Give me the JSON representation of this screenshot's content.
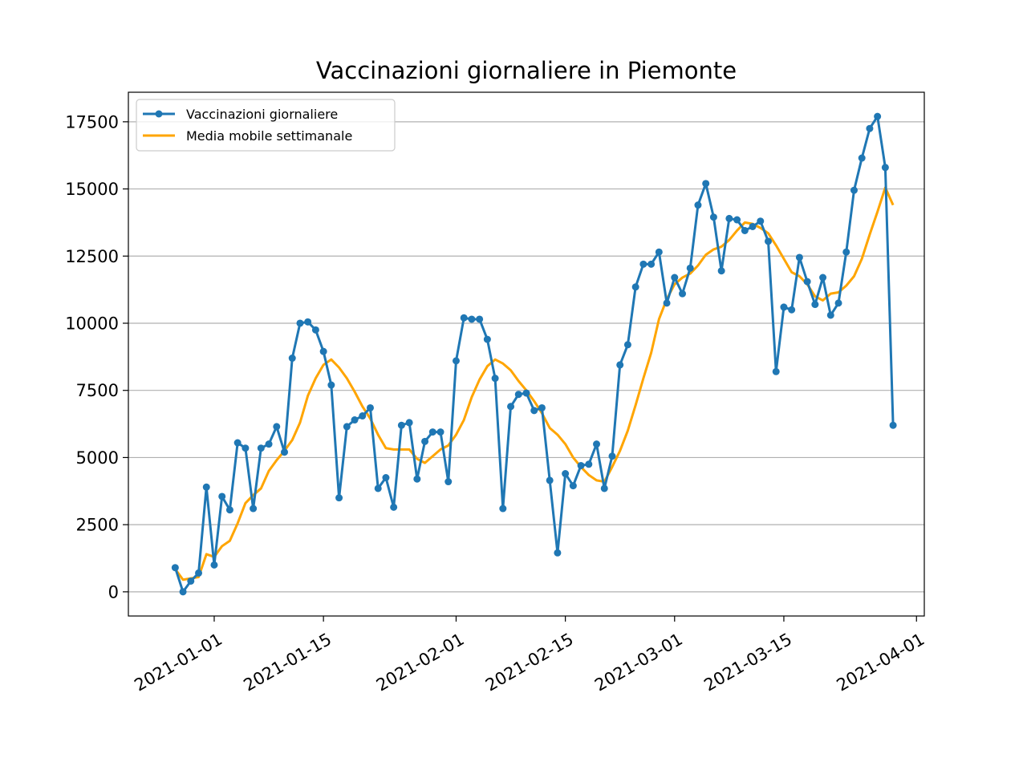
{
  "chart_data": {
    "type": "line",
    "title": "Vaccinazioni giornaliere in Piemonte",
    "xlabel": "",
    "ylabel": "",
    "x_start": "2020-12-27",
    "xlim": [
      "2020-12-21",
      "2021-04-02"
    ],
    "ylim": [
      -900,
      18600
    ],
    "x_ticks": [
      "2021-01-01",
      "2021-01-15",
      "2021-02-01",
      "2021-02-15",
      "2021-03-01",
      "2021-03-15",
      "2021-04-01"
    ],
    "y_ticks": [
      0,
      2500,
      5000,
      7500,
      10000,
      12500,
      15000,
      17500
    ],
    "y_tick_labels": [
      "0",
      "2500",
      "5000",
      "7500",
      "10000",
      "12500",
      "15000",
      "17500"
    ],
    "grid": "horizontal",
    "legend_position": "top-left",
    "series": [
      {
        "name": "Vaccinazioni giornaliere",
        "color": "#1f77b4",
        "marker": "circle",
        "values": [
          900,
          0,
          400,
          700,
          3900,
          1000,
          3550,
          3050,
          5550,
          5350,
          3100,
          5350,
          5500,
          6150,
          5200,
          8700,
          10000,
          10050,
          9750,
          8950,
          7700,
          3500,
          6150,
          6400,
          6550,
          6850,
          3850,
          4250,
          3150,
          6200,
          6300,
          4200,
          5600,
          5950,
          5950,
          4100,
          8600,
          10200,
          10150,
          10150,
          9400,
          7950,
          3100,
          6900,
          7350,
          7400,
          6750,
          6850,
          4150,
          1450,
          4400,
          3950,
          4700,
          4750,
          5500,
          3850,
          5050,
          8450,
          9200,
          11350,
          12200,
          12200,
          12650,
          10750,
          11700,
          11100,
          12050,
          14400,
          15200,
          13950,
          11950,
          13900,
          13850,
          13450,
          13600,
          13800,
          13050,
          8200,
          10600,
          10500,
          12450,
          11550,
          10700,
          11700,
          10300,
          10750,
          12650,
          14950,
          16150,
          17250,
          17700,
          15800,
          6200
        ]
      },
      {
        "name": "Media mobile settimanale",
        "color": "#ffa500",
        "marker": "none",
        "values": [
          850,
          450,
          500,
          550,
          1400,
          1300,
          1700,
          1900,
          2550,
          3300,
          3600,
          3850,
          4500,
          4900,
          5250,
          5650,
          6300,
          7300,
          7950,
          8450,
          8650,
          8350,
          7950,
          7450,
          6900,
          6450,
          5850,
          5350,
          5300,
          5300,
          5300,
          4950,
          4800,
          5050,
          5300,
          5450,
          5850,
          6400,
          7250,
          7900,
          8400,
          8650,
          8500,
          8250,
          7850,
          7500,
          7100,
          6650,
          6100,
          5850,
          5500,
          5000,
          4650,
          4350,
          4150,
          4100,
          4650,
          5250,
          6000,
          6950,
          7950,
          8900,
          10150,
          10900,
          11450,
          11700,
          11850,
          12150,
          12550,
          12750,
          12850,
          13100,
          13450,
          13750,
          13700,
          13550,
          13350,
          12900,
          12400,
          11900,
          11750,
          11450,
          11000,
          10850,
          11100,
          11150,
          11400,
          11750,
          12400,
          13300,
          14150,
          15050,
          14400
        ]
      }
    ]
  }
}
